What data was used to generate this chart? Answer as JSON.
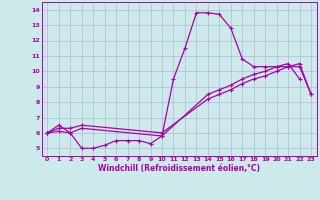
{
  "xlabel": "Windchill (Refroidissement éolien,°C)",
  "xlim": [
    -0.5,
    23.5
  ],
  "ylim": [
    4.5,
    14.5
  ],
  "yticks": [
    5,
    6,
    7,
    8,
    9,
    10,
    11,
    12,
    13,
    14
  ],
  "xticks": [
    0,
    1,
    2,
    3,
    4,
    5,
    6,
    7,
    8,
    9,
    10,
    11,
    12,
    13,
    14,
    15,
    16,
    17,
    18,
    19,
    20,
    21,
    22,
    23
  ],
  "bg_color": "#cceaea",
  "grid_color": "#b0b8d8",
  "line_color": "#aa00aa",
  "line1_x": [
    0,
    1,
    2,
    3,
    4,
    5,
    6,
    7,
    8,
    9,
    10,
    11,
    12,
    13,
    14,
    15,
    16,
    17,
    18,
    19,
    20,
    21,
    22
  ],
  "line1_y": [
    6.0,
    6.5,
    6.0,
    5.0,
    5.0,
    5.2,
    5.5,
    5.5,
    5.5,
    5.3,
    5.8,
    9.5,
    11.5,
    13.8,
    13.8,
    13.7,
    12.8,
    10.8,
    10.3,
    10.3,
    10.3,
    10.5,
    9.5
  ],
  "line2_x": [
    0,
    1,
    2,
    3,
    10,
    14,
    15,
    16,
    17,
    18,
    19,
    20,
    21,
    22,
    23
  ],
  "line2_y": [
    6.0,
    6.3,
    6.3,
    6.5,
    6.0,
    8.2,
    8.5,
    8.8,
    9.2,
    9.5,
    9.7,
    10.0,
    10.3,
    10.5,
    8.5
  ],
  "line3_x": [
    0,
    1,
    2,
    3,
    10,
    14,
    15,
    16,
    17,
    18,
    19,
    20,
    21,
    22,
    23
  ],
  "line3_y": [
    6.0,
    6.1,
    6.0,
    6.3,
    5.8,
    8.5,
    8.8,
    9.1,
    9.5,
    9.8,
    10.0,
    10.3,
    10.3,
    10.3,
    8.5
  ]
}
